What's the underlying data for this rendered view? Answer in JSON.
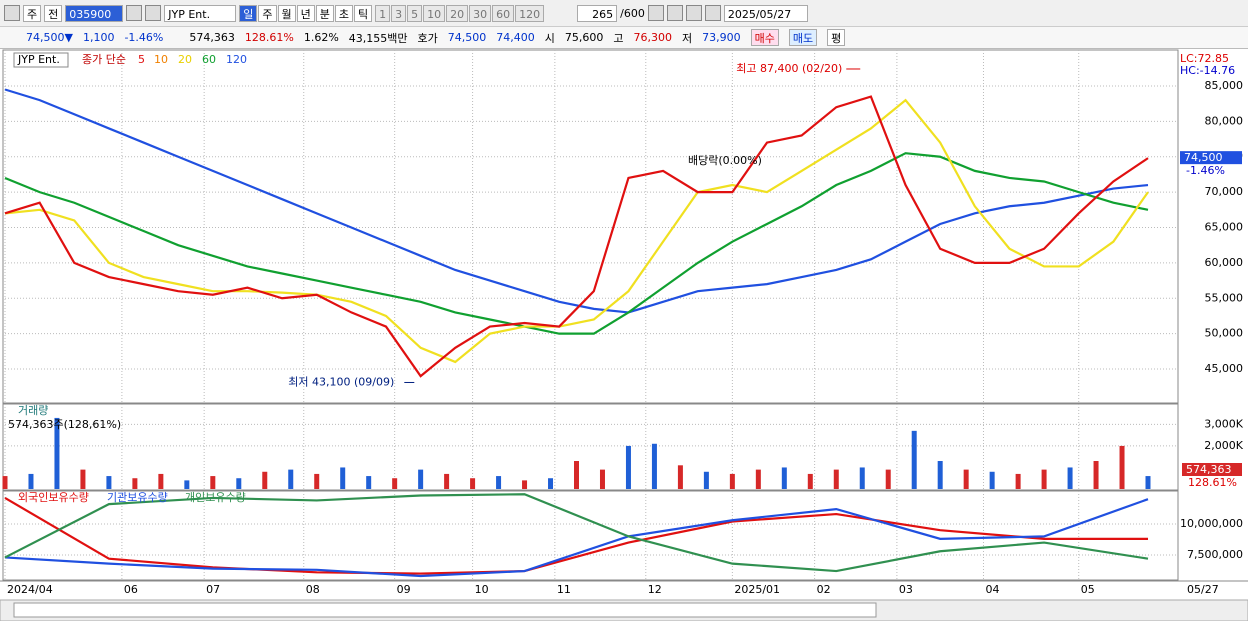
{
  "toolbar": {
    "period": "주",
    "prev": "전",
    "code": "035900",
    "name": "JYP Ent.",
    "units": [
      "일",
      "주",
      "월",
      "년",
      "분",
      "초",
      "틱"
    ],
    "numbers": [
      "1",
      "3",
      "5",
      "10",
      "20",
      "30",
      "60",
      "120"
    ],
    "count": "265",
    "max": "/600",
    "date": "2025/05/27"
  },
  "info": {
    "price": "74,500▼",
    "change": "1,100",
    "rate": "-1.46%",
    "volume": "574,363",
    "volume_rate": "128.61%",
    "turnover": "1.62%",
    "amount": "43,155백만",
    "quote_label": "호가",
    "ask": "74,500",
    "bid": "74,400",
    "open_label": "시",
    "open": "75,600",
    "high_label": "고",
    "high": "76,300",
    "low_label": "저",
    "low": "73,900",
    "buy": "매수",
    "sell": "매도",
    "avg": "평"
  },
  "chart_data": [
    {
      "type": "line",
      "name": "JYP Ent.",
      "legend_label": "종가 단순",
      "ma_labels": [
        {
          "label": "5",
          "color": "#e01010"
        },
        {
          "label": "10",
          "color": "#f08000"
        },
        {
          "label": "20",
          "color": "#e8d000"
        },
        {
          "label": "60",
          "color": "#10a030"
        },
        {
          "label": "120",
          "color": "#2050e0"
        }
      ],
      "lc": "LC:72.85",
      "hc": "HC:-14.76",
      "last_price": "74,500",
      "last_rate": "-1.46%",
      "high_note": "최고 87,400 (02/20)",
      "low_note": "최저 43,100 (09/09)",
      "dividend_note": "배당락(0.00%)",
      "xlim": [
        0,
        264
      ],
      "xticks": [
        {
          "value": 0,
          "label": "2024/04"
        },
        {
          "value": 27,
          "label": "06"
        },
        {
          "value": 46,
          "label": "07"
        },
        {
          "value": 69,
          "label": "08"
        },
        {
          "value": 90,
          "label": "09"
        },
        {
          "value": 108,
          "label": "10"
        },
        {
          "value": 127,
          "label": "11"
        },
        {
          "value": 148,
          "label": "12"
        },
        {
          "value": 168,
          "label": "2025/01"
        },
        {
          "value": 187,
          "label": "02"
        },
        {
          "value": 206,
          "label": "03"
        },
        {
          "value": 226,
          "label": "04"
        },
        {
          "value": 248,
          "label": "05"
        }
      ],
      "end_label": "05/27",
      "ylim": [
        40200,
        89800
      ],
      "yticks": [
        {
          "value": 45000,
          "label": "45,000"
        },
        {
          "value": 50000,
          "label": "50,000"
        },
        {
          "value": 55000,
          "label": "55,000"
        },
        {
          "value": 60000,
          "label": "60,000"
        },
        {
          "value": 65000,
          "label": "65,000"
        },
        {
          "value": 70000,
          "label": "70,000"
        },
        {
          "value": 75000,
          "label": "75,000"
        },
        {
          "value": 80000,
          "label": "80,000"
        },
        {
          "value": 85000,
          "label": "85,000"
        }
      ],
      "x": [
        0,
        8,
        16,
        24,
        32,
        40,
        48,
        56,
        64,
        72,
        80,
        88,
        96,
        104,
        112,
        120,
        128,
        136,
        144,
        152,
        160,
        168,
        176,
        184,
        192,
        200,
        208,
        216,
        224,
        232,
        240,
        248,
        256,
        264
      ],
      "series": [
        {
          "name": "120",
          "color": "#2050e0",
          "values": [
            84500,
            83000,
            81000,
            79000,
            77000,
            75000,
            73000,
            71000,
            69000,
            67000,
            65000,
            63000,
            61000,
            59000,
            57500,
            56000,
            54500,
            53500,
            53000,
            54500,
            56000,
            56500,
            57000,
            58000,
            59000,
            60500,
            63000,
            65500,
            67000,
            68000,
            68500,
            69500,
            70500,
            71000
          ]
        },
        {
          "name": "60",
          "color": "#10a030",
          "values": [
            72000,
            70000,
            68500,
            66500,
            64500,
            62500,
            61000,
            59500,
            58500,
            57500,
            56500,
            55500,
            54500,
            53000,
            52000,
            51000,
            50000,
            50000,
            53000,
            56500,
            60000,
            63000,
            65500,
            68000,
            71000,
            73000,
            75500,
            75000,
            73000,
            72000,
            71500,
            70000,
            68500,
            67500
          ]
        },
        {
          "name": "20",
          "color": "#f0e020",
          "values": [
            67000,
            67500,
            66000,
            60000,
            58000,
            57000,
            56000,
            56000,
            55800,
            55500,
            54500,
            52500,
            48000,
            46000,
            50000,
            51000,
            51000,
            52000,
            56000,
            63000,
            70000,
            71000,
            70000,
            73000,
            76000,
            79000,
            83000,
            77000,
            68000,
            62000,
            59500,
            59500,
            63000,
            70000
          ]
        },
        {
          "name": "5",
          "color": "#e01010",
          "values": [
            67000,
            68500,
            60000,
            58000,
            57000,
            56000,
            55500,
            56500,
            55000,
            55500,
            53000,
            51000,
            44000,
            48000,
            51000,
            51500,
            51000,
            56000,
            72000,
            73000,
            70000,
            70000,
            77000,
            78000,
            82000,
            83500,
            71000,
            62000,
            60000,
            60000,
            62000,
            67000,
            71500,
            74800
          ]
        }
      ],
      "high_point": {
        "x": 198,
        "value": 87400
      },
      "low_point": {
        "x": 95,
        "value": 43100
      }
    },
    {
      "type": "bar",
      "title": "거래량",
      "subtitle": "574,363주(128,61%)",
      "last_value": "574,363",
      "last_rate": "128.61%",
      "ylim": [
        0,
        3900000
      ],
      "yticks": [
        {
          "value": 2000000,
          "label": "2,000K"
        },
        {
          "value": 3000000,
          "label": "3,000K"
        }
      ],
      "x": [
        0,
        6,
        12,
        18,
        24,
        30,
        36,
        42,
        48,
        54,
        60,
        66,
        72,
        78,
        84,
        90,
        96,
        102,
        108,
        114,
        120,
        126,
        132,
        138,
        144,
        150,
        156,
        162,
        168,
        174,
        180,
        186,
        192,
        198,
        204,
        210,
        216,
        222,
        228,
        234,
        240,
        246,
        252,
        258,
        264
      ],
      "values": [
        600000,
        700000,
        3300000,
        900000,
        600000,
        500000,
        700000,
        400000,
        600000,
        500000,
        800000,
        900000,
        700000,
        1000000,
        600000,
        500000,
        900000,
        700000,
        500000,
        600000,
        400000,
        500000,
        1300000,
        900000,
        2000000,
        2100000,
        1100000,
        800000,
        700000,
        900000,
        1000000,
        700000,
        900000,
        1000000,
        900000,
        2700000,
        1300000,
        900000,
        800000,
        700000,
        900000,
        1000000,
        1300000,
        2000000,
        600000
      ],
      "colors": [
        "#d62828",
        "#1f5fd6",
        "#1f5fd6",
        "#d62828",
        "#1f5fd6",
        "#d62828",
        "#d62828",
        "#1f5fd6",
        "#d62828",
        "#1f5fd6",
        "#d62828",
        "#1f5fd6",
        "#d62828",
        "#1f5fd6",
        "#1f5fd6",
        "#d62828",
        "#1f5fd6",
        "#d62828",
        "#d62828",
        "#1f5fd6",
        "#d62828",
        "#1f5fd6",
        "#d62828",
        "#d62828",
        "#1f5fd6",
        "#1f5fd6",
        "#d62828",
        "#1f5fd6",
        "#d62828",
        "#d62828",
        "#1f5fd6",
        "#d62828",
        "#d62828",
        "#1f5fd6",
        "#d62828",
        "#1f5fd6",
        "#1f5fd6",
        "#d62828",
        "#1f5fd6",
        "#d62828",
        "#d62828",
        "#1f5fd6",
        "#d62828",
        "#d62828",
        "#1f5fd6"
      ]
    },
    {
      "type": "line",
      "ylim": [
        5480000,
        12580000
      ],
      "yticks": [
        {
          "value": 7500000,
          "label": "7,500,000"
        },
        {
          "value": 10000000,
          "label": "10,000,000"
        }
      ],
      "x": [
        0,
        24,
        48,
        72,
        96,
        120,
        144,
        168,
        192,
        216,
        240,
        264
      ],
      "series": [
        {
          "name": "외국인보유수량",
          "color": "#e01010",
          "values": [
            12100000,
            7200000,
            6500000,
            6100000,
            6000000,
            6200000,
            8500000,
            10200000,
            10800000,
            9500000,
            8800000,
            8800000
          ]
        },
        {
          "name": "기관보유수량",
          "color": "#2050e0",
          "values": [
            7300000,
            6800000,
            6400000,
            6300000,
            5800000,
            6200000,
            9000000,
            10300000,
            11200000,
            8800000,
            9000000,
            12000000
          ]
        },
        {
          "name": "개인보유수량",
          "color": "#309050",
          "values": [
            7300000,
            11600000,
            12100000,
            11900000,
            12300000,
            12400000,
            9000000,
            6800000,
            6200000,
            7800000,
            8500000,
            7200000
          ]
        }
      ]
    }
  ]
}
